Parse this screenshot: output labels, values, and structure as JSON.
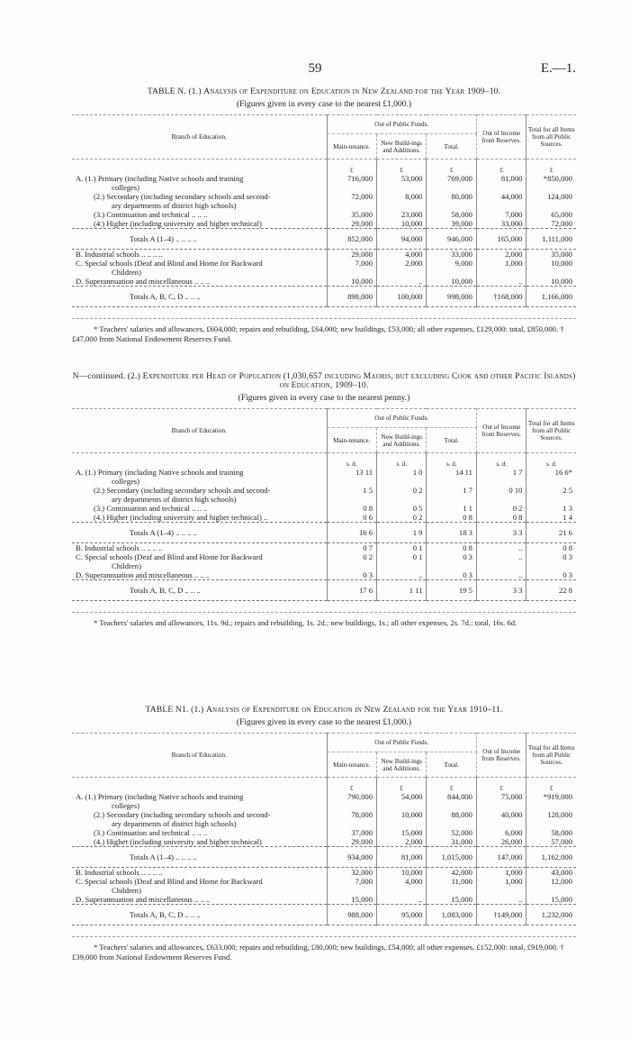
{
  "page_number": "59",
  "reference": "E.—1.",
  "headers": {
    "branch": "Branch of Education.",
    "public_funds": "Out of Public Funds.",
    "maintenance": "Main-tenance.",
    "new_buildings": "New Build-ings and Additions.",
    "total": "Total.",
    "reserves": "Out of Income from Reserves.",
    "total_all": "Total for all Items from all Public Sources."
  },
  "tables": [
    {
      "title_prefix": "TABLE N.  (1.)",
      "title_main": "Analysis of Expenditure on Education in New Zealand for the Year 1909–10.",
      "subtitle": "(Figures given in every case to the nearest £1,000.)",
      "unit": [
        "£",
        "£",
        "£",
        "£",
        "£"
      ],
      "rows": [
        {
          "label": "A. (1.) Primary (including Native schools and training",
          "cont": "colleges)",
          "values": [
            "716,000",
            "53,000",
            "769,000",
            "81,000",
            "*850,000"
          ]
        },
        {
          "label": "(2.) Secondary (including secondary schools and second-",
          "cont": "ary departments of district high schools)",
          "values": [
            "72,000",
            "8,000",
            "80,000",
            "44,000",
            "124,000"
          ],
          "indent": true
        },
        {
          "label": "(3.) Continuation and technical   ..   ..   ..",
          "values": [
            "35,000",
            "23,000",
            "58,000",
            "7,000",
            "65,000"
          ],
          "indent": true
        },
        {
          "label": "(4.) Higher (including university and higher technical)",
          "values": [
            "29,000",
            "10,000",
            "39,000",
            "33,000",
            "72,000"
          ],
          "indent": true
        },
        {
          "label": "Totals A (1–4)  ..   ..   ..   ..",
          "values": [
            "852,000",
            "94,000",
            "946,000",
            "165,000",
            "1,111,000"
          ],
          "total": true
        },
        {
          "label": "B. Industrial schools   ..   ..   ..   ..",
          "values": [
            "29,000",
            "4,000",
            "33,000",
            "2,000",
            "35,000"
          ]
        },
        {
          "label": "C. Special schools (Deaf and Blind and Home for Backward",
          "cont": "Children)",
          "values": [
            "7,000",
            "2,000",
            "9,000",
            "1,000",
            "10,000"
          ]
        },
        {
          "label": "D. Superannuation and miscellaneous ..   ..   ..",
          "values": [
            "10,000",
            "..",
            "10,000",
            "..",
            "10,000"
          ]
        },
        {
          "label": "Totals A, B, C, D   ..   ..   ..",
          "values": [
            "898,000",
            "100,000",
            "998,000",
            "†168,000",
            "1,166,000"
          ],
          "total": true
        }
      ],
      "footnote": "* Teachers' salaries and allowances, £604,000; repairs and rebuilding, £64,000; new buildings, £53,000; all other expenses, £129,000: total, £850,000.    † £47,000 from National Endowment Reserves Fund."
    },
    {
      "title_prefix": "N—continued.  (2.)",
      "title_main": "Expenditure per Head of Population (1,030,657 including Maoris, but excluding Cook and other Pacific Islands) on Education, 1909–10.",
      "subtitle": "(Figures given in every case to the nearest penny.)",
      "unit": [
        "s.  d.",
        "s.  d.",
        "s.  d.",
        "s.  d.",
        "s.  d."
      ],
      "rows": [
        {
          "label": "A. (1.) Primary (including Native schools and training",
          "cont": "colleges)",
          "values": [
            "13 11",
            "1  0",
            "14 11",
            "1  7",
            "16  6*"
          ]
        },
        {
          "label": "(2.) Secondary (including secondary schools and second-",
          "cont": "ary departments of district high schools)",
          "values": [
            "1  5",
            "0  2",
            "1  7",
            "0 10",
            "2  5"
          ],
          "indent": true
        },
        {
          "label": "(3.) Continuation and technical   ..   ..   ..",
          "values": [
            "0  8",
            "0  5",
            "1  1",
            "0  2",
            "1  3"
          ],
          "indent": true
        },
        {
          "label": "(4.) Higher (including university and higher technical) ..",
          "values": [
            "0  6",
            "0  2",
            "0  8",
            "0  8",
            "1  4"
          ],
          "indent": true
        },
        {
          "label": "Totals A (1–4)  ..   ..   ..   ..",
          "values": [
            "16  6",
            "1  9",
            "18  3",
            "3  3",
            "21  6"
          ],
          "total": true
        },
        {
          "label": "B. Industrial schools   ..   ..   ..   ..",
          "values": [
            "0  7",
            "0  1",
            "0  8",
            "..",
            "0  8"
          ]
        },
        {
          "label": "C. Special schools (Deaf and Blind and Home for Backward",
          "cont": "Children)",
          "values": [
            "0  2",
            "0  1",
            "0  3",
            "..",
            "0  3"
          ]
        },
        {
          "label": "D. Superannuation and miscellaneous ..   ..   ..",
          "values": [
            "0  3",
            "..",
            "0  3",
            "..",
            "0  3"
          ]
        },
        {
          "label": "Totals A, B, C, D   ..   ..   ..",
          "values": [
            "17  6",
            "1 11",
            "19  5",
            "3  3",
            "22  8"
          ],
          "total": true
        }
      ],
      "footnote": "* Teachers' salaries and allowances, 11s. 9d.; repairs and rebuilding, 1s. 2d.; new buildings, 1s.; all other expenses, 2s. 7d.: total, 16s. 6d."
    },
    {
      "title_prefix": "TABLE N1.  (1.)",
      "title_main": "Analysis of Expenditure on Education in New Zealand for the Year 1910–11.",
      "subtitle": "(Figures given in every case to the nearest £1,000.)",
      "unit": [
        "£",
        "£",
        "£",
        "£",
        "£"
      ],
      "rows": [
        {
          "label": "A. (1.) Primary (including Native schools and training",
          "cont": "colleges)",
          "values": [
            "790,000",
            "54,000",
            "844,000",
            "75,000",
            "*919,000"
          ]
        },
        {
          "label": "(2.) Secondary (including secondary schools and second-",
          "cont": "ary departments of district high schools)",
          "values": [
            "78,000",
            "10,000",
            "88,000",
            "40,000",
            "128,000"
          ],
          "indent": true
        },
        {
          "label": "(3.) Continuation and technical   ..   ..   ..",
          "values": [
            "37,000",
            "15,000",
            "52,000",
            "6,000",
            "58,000"
          ],
          "indent": true
        },
        {
          "label": "(4.) Higher (including university and higher technical)",
          "values": [
            "29,000",
            "2,000",
            "31,000",
            "26,000",
            "57,000"
          ],
          "indent": true
        },
        {
          "label": "Totals A (1–4)  ..   ..   ..   ..",
          "values": [
            "934,000",
            "81,000",
            "1,015,000",
            "147,000",
            "1,162,000"
          ],
          "total": true
        },
        {
          "label": "B. Industrial schools   ..   ..   ..   ..",
          "values": [
            "32,000",
            "10,000",
            "42,000",
            "1,000",
            "43,000"
          ]
        },
        {
          "label": "C. Special schools (Deaf and Blind and Home for Backward",
          "cont": "Children)",
          "values": [
            "7,000",
            "4,000",
            "11,000",
            "1,000",
            "12,000"
          ]
        },
        {
          "label": "D. Superannuation and miscellaneous ..   ..   ..",
          "values": [
            "15,000",
            "..",
            "15,000",
            "..",
            "15,000"
          ]
        },
        {
          "label": "Totals A, B, C, D   ..   ..   ..",
          "values": [
            "988,000",
            "95,000",
            "1,083,000",
            "†149,000",
            "1,232,000"
          ],
          "total": true
        }
      ],
      "footnote": "* Teachers' salaries and allowances, £633,000; repairs and rebuilding, £80,000; new buildings, £54,000; all other expenses, £152,000: total, £919,000.    † £39,000 from National Endowment Reserves Fund."
    }
  ]
}
